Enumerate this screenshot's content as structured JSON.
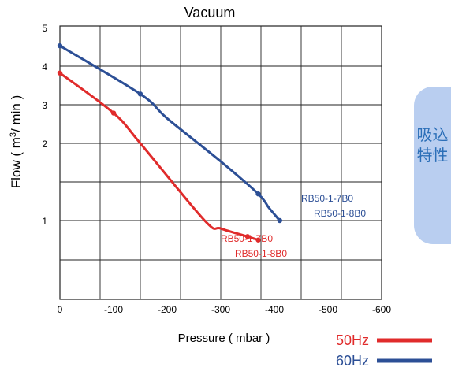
{
  "side_tab": {
    "label": "吸込特性",
    "text_color": "#2c6fb8",
    "bg_color": "#b9cef0"
  },
  "chart_data": {
    "type": "line",
    "title": "Vacuum",
    "xlabel": "Pressure ( mbar )",
    "ylabel": "Flow ( m³/ min )",
    "x_ticks": [
      "0",
      "-100",
      "-200",
      "-300",
      "-400",
      "-500",
      "-600"
    ],
    "y_ticks": [
      "1",
      "2",
      "3",
      "4",
      "5"
    ],
    "xlim": [
      0,
      -600
    ],
    "y_scale": "log",
    "grid": true,
    "legend_position": "bottom-right",
    "series": [
      {
        "name": "50Hz",
        "color": "#e02b2b",
        "points": [
          [
            0,
            3.8
          ],
          [
            -100,
            2.75
          ],
          [
            -150,
            2.0
          ],
          [
            -270,
            1.0
          ],
          [
            -300,
            0.87
          ],
          [
            -350,
            0.755
          ],
          [
            -370,
            0.71
          ]
        ],
        "markers": [
          0,
          1,
          5,
          6
        ],
        "end_labels": [
          "RB50-1-7B0",
          "RB50-1-8B0"
        ]
      },
      {
        "name": "60Hz",
        "color": "#2c4f96",
        "points": [
          [
            0,
            4.5
          ],
          [
            -150,
            3.25
          ],
          [
            -200,
            2.6
          ],
          [
            -300,
            1.7
          ],
          [
            -370,
            1.27
          ],
          [
            -390,
            1.12
          ],
          [
            -410,
            1.0
          ]
        ],
        "markers": [
          0,
          1,
          4,
          6
        ],
        "end_labels": [
          "RB50-1-7B0",
          "RB50-1-8B0"
        ]
      }
    ]
  }
}
